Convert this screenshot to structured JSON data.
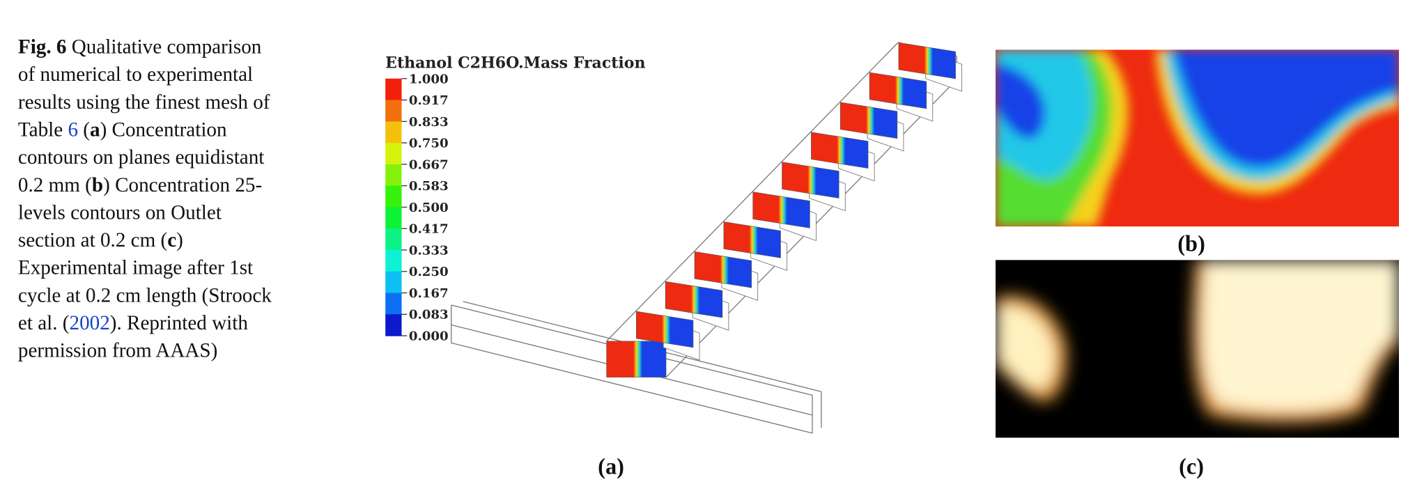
{
  "caption": {
    "lines": [
      [
        "Fig. 6",
        " Qualitative comparison"
      ],
      [
        "of numerical to experimental"
      ],
      [
        "results using the finest mesh of"
      ],
      [
        "Table ",
        "6",
        " (",
        "a",
        ") Concentration"
      ],
      [
        "contours on planes equidistant"
      ],
      [
        "0.2 mm (",
        "b",
        ") Concentration 25-"
      ],
      [
        "levels contours on Outlet"
      ],
      [
        "section at 0.2 cm (",
        "c",
        ")"
      ],
      [
        "Experimental image after 1st"
      ],
      [
        "cycle at 0.2 cm length (Stroock"
      ],
      [
        "et al. (",
        "2002",
        "). Reprinted with"
      ],
      [
        "permission from AAAS)"
      ]
    ]
  },
  "colorbar": {
    "title": "Ethanol C2H6O.Mass Fraction",
    "levels": [
      "1.000",
      "0.917",
      "0.833",
      "0.750",
      "0.667",
      "0.583",
      "0.500",
      "0.417",
      "0.333",
      "0.250",
      "0.167",
      "0.083",
      "0.000"
    ]
  },
  "panels": {
    "a": "(a)",
    "b": "(b)",
    "c": "(c)"
  }
}
